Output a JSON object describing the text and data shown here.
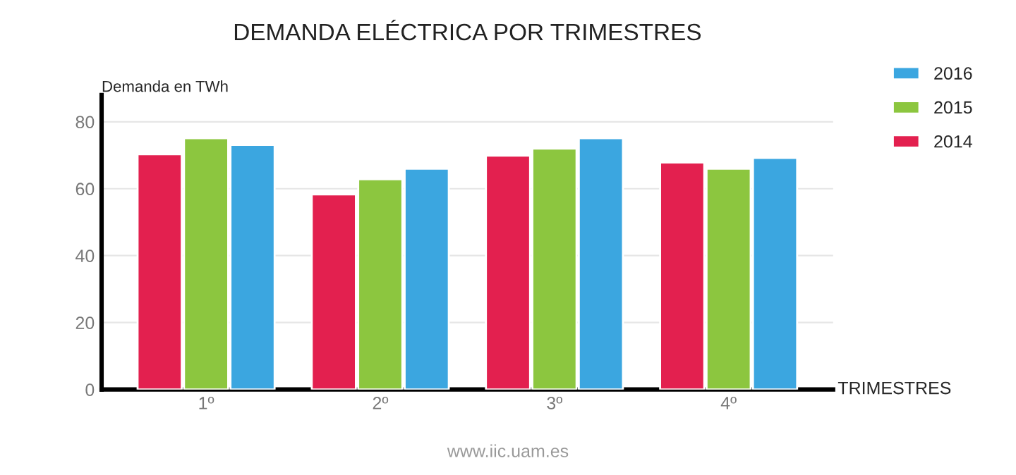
{
  "chart_data": {
    "type": "bar",
    "title": "DEMANDA ELÉCTRICA POR TRIMESTRES",
    "xlabel": "TRIMESTRES",
    "ylabel": "Demanda en TWh",
    "categories": [
      "1º",
      "2º",
      "3º",
      "4º"
    ],
    "series": [
      {
        "name": "2014",
        "color": "#e3204f",
        "values": [
          70.3,
          58.3,
          69.9,
          67.8
        ]
      },
      {
        "name": "2015",
        "color": "#8cc63f",
        "values": [
          75.1,
          62.8,
          72.0,
          66.0
        ]
      },
      {
        "name": "2016",
        "color": "#3ba6e0",
        "values": [
          73.1,
          66.0,
          75.1,
          69.2
        ]
      }
    ],
    "ylim": [
      0,
      88
    ],
    "yticks": [
      0,
      20,
      40,
      60,
      80
    ],
    "grid": "y",
    "legend": "top right",
    "annotations": [
      "www.iic.uam.es"
    ]
  }
}
